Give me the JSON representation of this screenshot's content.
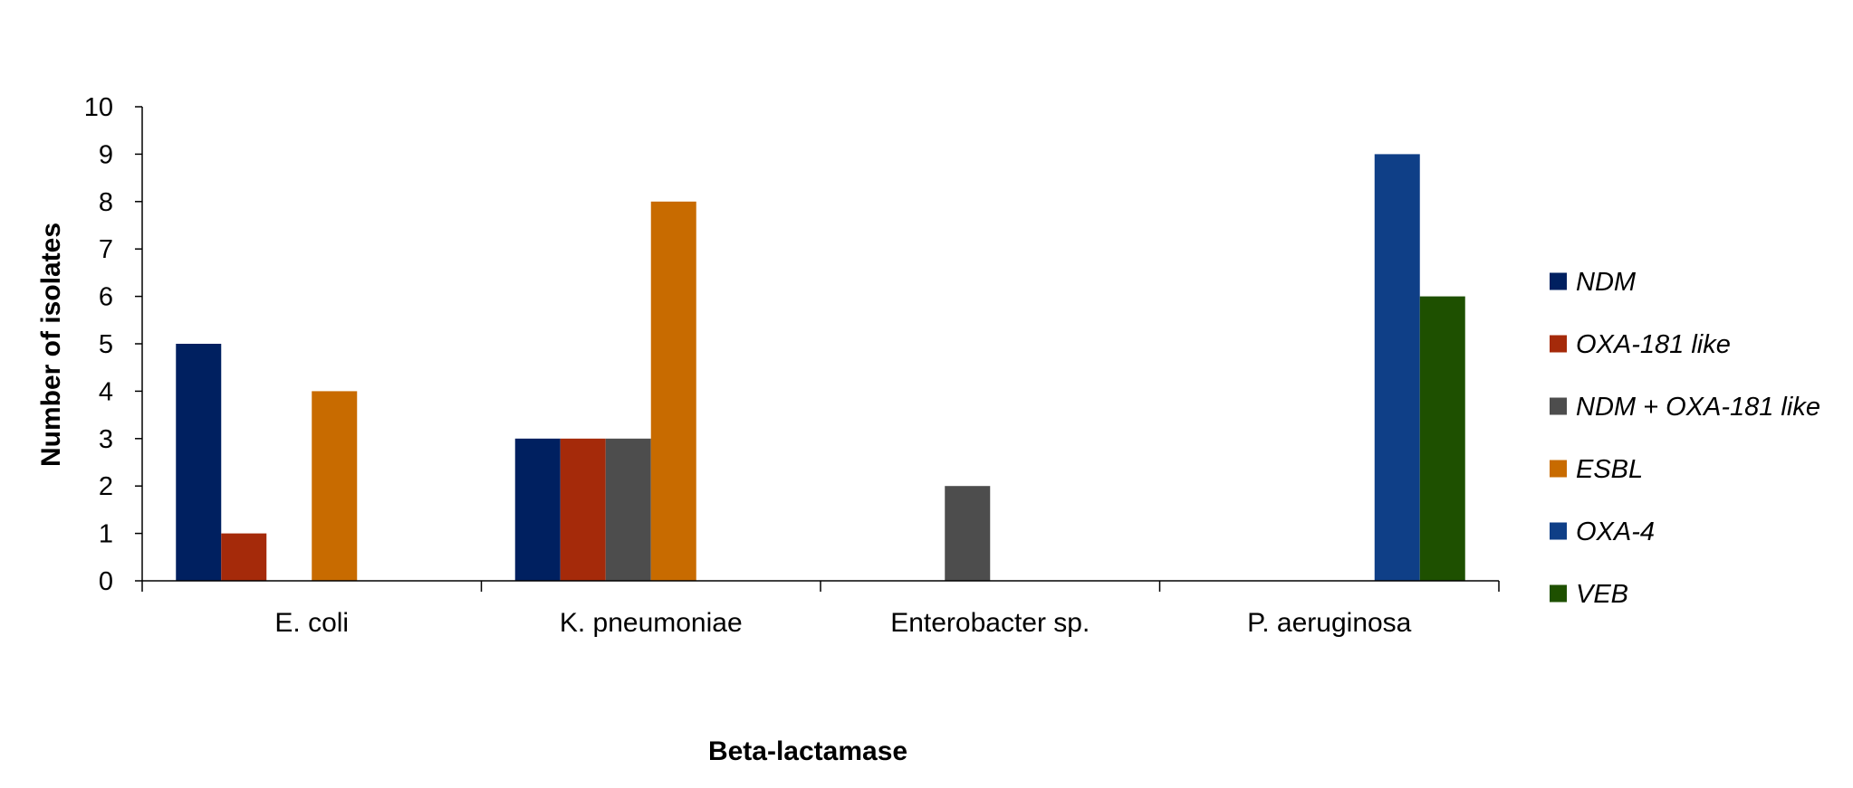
{
  "chart_data": {
    "type": "bar",
    "xlabel": "Beta-lactamase",
    "ylabel": "Number of isolates",
    "ylim": [
      0,
      10
    ],
    "yticks": [
      0,
      1,
      2,
      3,
      4,
      5,
      6,
      7,
      8,
      9,
      10
    ],
    "grid": false,
    "legend_position": "right",
    "categories": [
      "E. coli",
      "K. pneumoniae",
      "Enterobacter sp.",
      "P. aeruginosa"
    ],
    "series": [
      {
        "name": "NDM",
        "color": "#002060",
        "values": [
          5,
          3,
          null,
          null
        ]
      },
      {
        "name": "OXA-181 like",
        "color": "#A52A0A",
        "values": [
          1,
          3,
          null,
          null
        ]
      },
      {
        "name": "NDM + OXA-181 like",
        "color": "#4D4D4D",
        "values": [
          null,
          3,
          2,
          null
        ]
      },
      {
        "name": "ESBL",
        "color": "#C86B00",
        "values": [
          4,
          8,
          null,
          null
        ]
      },
      {
        "name": "OXA-4",
        "color": "#0F3F87",
        "values": [
          null,
          null,
          null,
          9
        ]
      },
      {
        "name": "VEB",
        "color": "#1E5000",
        "values": [
          null,
          null,
          null,
          6
        ]
      }
    ]
  }
}
